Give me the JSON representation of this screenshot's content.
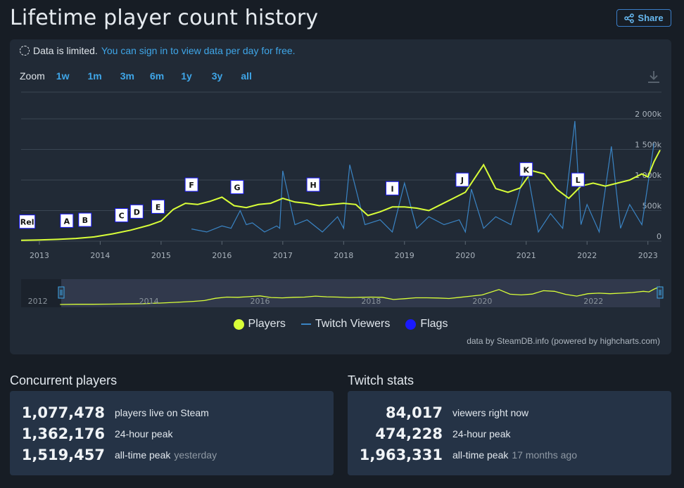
{
  "header": {
    "title": "Lifetime player count history",
    "share_label": "Share"
  },
  "notice": {
    "text": "Data is limited.",
    "link": "You can sign in to view data per day for free."
  },
  "zoom": {
    "label": "Zoom",
    "buttons": [
      "1w",
      "1m",
      "3m",
      "6m",
      "1y",
      "3y",
      "all"
    ]
  },
  "legend": {
    "players": "Players",
    "twitch": "Twitch Viewers",
    "flags": "Flags"
  },
  "credits": "data by SteamDB.info (powered by highcharts.com)",
  "colors": {
    "players": "#d9ff38",
    "twitch": "#3a84c4",
    "flags": "#1a1aff",
    "background": "#212a36"
  },
  "chart_data": {
    "type": "line",
    "title": "Lifetime player count history",
    "x_unit": "year",
    "xlim": [
      2012.7,
      2023.2
    ],
    "x_ticks": [
      "2013",
      "2014",
      "2015",
      "2016",
      "2017",
      "2018",
      "2019",
      "2020",
      "2021",
      "2022",
      "2023"
    ],
    "y_ticks": [
      "0",
      "500k",
      "1 000k",
      "1 500k",
      "2 000k"
    ],
    "ylim": [
      0,
      2000000
    ],
    "navigator_ticks": [
      "2012",
      "2014",
      "2016",
      "2018",
      "2020",
      "2022"
    ],
    "series": [
      {
        "name": "Players",
        "x": [
          2012.7,
          2013.0,
          2013.3,
          2013.6,
          2013.9,
          2014.2,
          2014.5,
          2014.8,
          2015.0,
          2015.2,
          2015.4,
          2015.6,
          2015.8,
          2016.0,
          2016.2,
          2016.4,
          2016.6,
          2016.8,
          2017.0,
          2017.2,
          2017.4,
          2017.6,
          2017.8,
          2018.0,
          2018.2,
          2018.4,
          2018.6,
          2018.8,
          2019.0,
          2019.2,
          2019.4,
          2019.6,
          2019.8,
          2020.0,
          2020.3,
          2020.5,
          2020.7,
          2020.9,
          2021.1,
          2021.3,
          2021.5,
          2021.7,
          2021.9,
          2022.1,
          2022.3,
          2022.5,
          2022.7,
          2022.9,
          2023.0,
          2023.1,
          2023.2
        ],
        "values": [
          15000,
          20000,
          30000,
          45000,
          70000,
          120000,
          180000,
          260000,
          330000,
          520000,
          620000,
          600000,
          650000,
          720000,
          580000,
          550000,
          600000,
          620000,
          700000,
          640000,
          620000,
          580000,
          600000,
          620000,
          600000,
          420000,
          480000,
          560000,
          560000,
          540000,
          500000,
          600000,
          700000,
          800000,
          1250000,
          860000,
          800000,
          870000,
          1150000,
          1100000,
          850000,
          700000,
          900000,
          950000,
          900000,
          950000,
          1000000,
          1100000,
          1050000,
          1300000,
          1490000
        ]
      },
      {
        "name": "Twitch Viewers",
        "x": [
          2015.5,
          2016.0,
          2016.3,
          2016.5,
          2016.9,
          2017.0,
          2017.4,
          2017.9,
          2018.1,
          2018.6,
          2019.0,
          2019.4,
          2019.9,
          2020.1,
          2020.5,
          2021.0,
          2021.4,
          2021.8,
          2022.0,
          2022.4,
          2022.7,
          2023.1
        ],
        "values": [
          200000,
          250000,
          500000,
          300000,
          250000,
          1150000,
          350000,
          400000,
          1250000,
          350000,
          950000,
          400000,
          350000,
          850000,
          400000,
          1250000,
          450000,
          1963331,
          600000,
          1550000,
          600000,
          1600000
        ]
      }
    ],
    "flags": [
      {
        "label": "Rel",
        "x": 2012.8
      },
      {
        "label": "A",
        "x": 2013.45
      },
      {
        "label": "B",
        "x": 2013.75
      },
      {
        "label": "C",
        "x": 2014.35
      },
      {
        "label": "D",
        "x": 2014.6
      },
      {
        "label": "E",
        "x": 2014.95
      },
      {
        "label": "F",
        "x": 2015.5
      },
      {
        "label": "G",
        "x": 2016.25
      },
      {
        "label": "H",
        "x": 2017.5
      },
      {
        "label": "I",
        "x": 2018.8
      },
      {
        "label": "J",
        "x": 2019.95
      },
      {
        "label": "K",
        "x": 2021.0
      },
      {
        "label": "L",
        "x": 2021.85
      }
    ],
    "legend_position": "bottom",
    "grid": true
  },
  "concurrent": {
    "title": "Concurrent players",
    "rows": [
      {
        "value": "1,077,478",
        "label": "players live on Steam",
        "sub": ""
      },
      {
        "value": "1,362,176",
        "label": "24-hour peak",
        "sub": ""
      },
      {
        "value": "1,519,457",
        "label": "all-time peak",
        "sub": "yesterday"
      }
    ]
  },
  "twitch": {
    "title": "Twitch stats",
    "rows": [
      {
        "value": "84,017",
        "label": "viewers right now",
        "sub": ""
      },
      {
        "value": "474,228",
        "label": "24-hour peak",
        "sub": ""
      },
      {
        "value": "1,963,331",
        "label": "all-time peak",
        "sub": "17 months ago"
      }
    ]
  }
}
